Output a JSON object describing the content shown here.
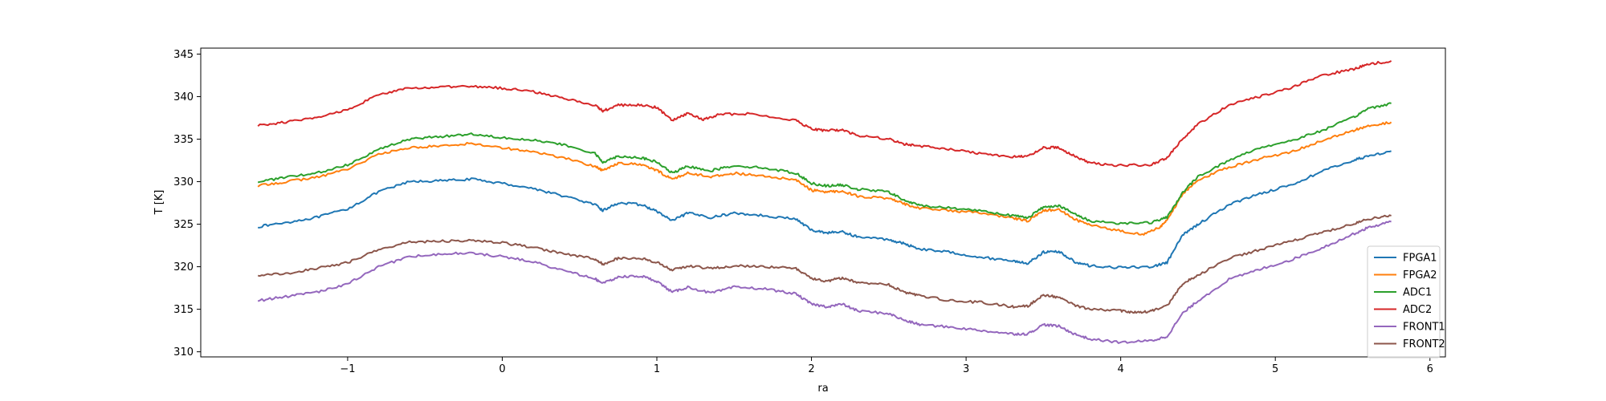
{
  "chart_data": {
    "type": "line",
    "title": "",
    "xlabel": "ra",
    "ylabel": "T [K]",
    "xlim": [
      -1.95,
      6.1
    ],
    "ylim": [
      309.4,
      345.7
    ],
    "xticks": [
      -1,
      0,
      1,
      2,
      3,
      4,
      5,
      6
    ],
    "yticks": [
      310,
      315,
      320,
      325,
      330,
      335,
      340,
      345
    ],
    "grid": false,
    "legend_position": "lower-right",
    "series": [
      {
        "name": "FPGA1",
        "color": "#1f77b4",
        "points": [
          [
            -1.58,
            324.7
          ],
          [
            -1.4,
            325.2
          ],
          [
            -1.2,
            325.8
          ],
          [
            -1.0,
            326.8
          ],
          [
            -0.8,
            328.8
          ],
          [
            -0.6,
            330.0
          ],
          [
            -0.4,
            330.1
          ],
          [
            -0.2,
            330.3
          ],
          [
            0.0,
            329.8
          ],
          [
            0.2,
            329.2
          ],
          [
            0.4,
            328.3
          ],
          [
            0.6,
            327.3
          ],
          [
            0.65,
            326.6
          ],
          [
            0.75,
            327.5
          ],
          [
            0.9,
            327.3
          ],
          [
            1.0,
            326.5
          ],
          [
            1.1,
            325.4
          ],
          [
            1.2,
            326.3
          ],
          [
            1.35,
            325.8
          ],
          [
            1.5,
            326.3
          ],
          [
            1.7,
            326.0
          ],
          [
            1.9,
            325.6
          ],
          [
            2.0,
            324.3
          ],
          [
            2.1,
            324.0
          ],
          [
            2.2,
            324.1
          ],
          [
            2.3,
            323.5
          ],
          [
            2.5,
            323.2
          ],
          [
            2.6,
            322.7
          ],
          [
            2.7,
            322.1
          ],
          [
            2.9,
            321.7
          ],
          [
            3.1,
            321.1
          ],
          [
            3.3,
            320.7
          ],
          [
            3.4,
            320.4
          ],
          [
            3.5,
            321.7
          ],
          [
            3.6,
            321.8
          ],
          [
            3.7,
            320.6
          ],
          [
            3.8,
            320.1
          ],
          [
            4.0,
            319.9
          ],
          [
            4.2,
            320.0
          ],
          [
            4.3,
            320.5
          ],
          [
            4.4,
            323.7
          ],
          [
            4.5,
            325.0
          ],
          [
            4.7,
            327.3
          ],
          [
            4.9,
            328.6
          ],
          [
            5.1,
            329.6
          ],
          [
            5.3,
            331.2
          ],
          [
            5.5,
            332.5
          ],
          [
            5.6,
            333.0
          ],
          [
            5.75,
            333.6
          ]
        ]
      },
      {
        "name": "FPGA2",
        "color": "#ff7f0e",
        "points": [
          [
            -1.58,
            329.5
          ],
          [
            -1.4,
            330.0
          ],
          [
            -1.2,
            330.5
          ],
          [
            -1.0,
            331.5
          ],
          [
            -0.8,
            333.2
          ],
          [
            -0.6,
            334.0
          ],
          [
            -0.4,
            334.2
          ],
          [
            -0.2,
            334.5
          ],
          [
            0.0,
            334.0
          ],
          [
            0.2,
            333.5
          ],
          [
            0.4,
            332.8
          ],
          [
            0.6,
            331.8
          ],
          [
            0.65,
            331.3
          ],
          [
            0.75,
            332.2
          ],
          [
            0.9,
            332.0
          ],
          [
            1.0,
            331.3
          ],
          [
            1.1,
            330.3
          ],
          [
            1.2,
            331.0
          ],
          [
            1.35,
            330.6
          ],
          [
            1.5,
            331.0
          ],
          [
            1.7,
            330.6
          ],
          [
            1.9,
            330.2
          ],
          [
            2.0,
            329.0
          ],
          [
            2.1,
            328.8
          ],
          [
            2.2,
            328.9
          ],
          [
            2.3,
            328.3
          ],
          [
            2.5,
            328.0
          ],
          [
            2.6,
            327.4
          ],
          [
            2.7,
            326.9
          ],
          [
            2.9,
            326.6
          ],
          [
            3.1,
            326.3
          ],
          [
            3.3,
            325.7
          ],
          [
            3.4,
            325.4
          ],
          [
            3.5,
            326.6
          ],
          [
            3.6,
            326.7
          ],
          [
            3.7,
            325.6
          ],
          [
            3.8,
            324.9
          ],
          [
            4.0,
            324.2
          ],
          [
            4.15,
            323.8
          ],
          [
            4.25,
            324.6
          ],
          [
            4.3,
            325.5
          ],
          [
            4.4,
            328.5
          ],
          [
            4.5,
            330.2
          ],
          [
            4.7,
            331.7
          ],
          [
            4.9,
            332.7
          ],
          [
            5.1,
            333.5
          ],
          [
            5.3,
            334.8
          ],
          [
            5.5,
            336.0
          ],
          [
            5.6,
            336.5
          ],
          [
            5.75,
            337.0
          ]
        ]
      },
      {
        "name": "ADC1",
        "color": "#2ca02c",
        "points": [
          [
            -1.58,
            330.0
          ],
          [
            -1.4,
            330.5
          ],
          [
            -1.2,
            331.0
          ],
          [
            -1.0,
            332.0
          ],
          [
            -0.8,
            333.8
          ],
          [
            -0.6,
            335.0
          ],
          [
            -0.4,
            335.3
          ],
          [
            -0.2,
            335.6
          ],
          [
            0.0,
            335.2
          ],
          [
            0.2,
            334.9
          ],
          [
            0.4,
            334.3
          ],
          [
            0.6,
            333.3
          ],
          [
            0.65,
            332.3
          ],
          [
            0.75,
            333.0
          ],
          [
            0.9,
            332.8
          ],
          [
            1.0,
            332.3
          ],
          [
            1.1,
            331.0
          ],
          [
            1.2,
            331.8
          ],
          [
            1.35,
            331.3
          ],
          [
            1.5,
            331.9
          ],
          [
            1.7,
            331.6
          ],
          [
            1.9,
            331.0
          ],
          [
            2.0,
            329.8
          ],
          [
            2.1,
            329.5
          ],
          [
            2.2,
            329.6
          ],
          [
            2.3,
            329.1
          ],
          [
            2.5,
            328.8
          ],
          [
            2.6,
            327.8
          ],
          [
            2.7,
            327.2
          ],
          [
            2.9,
            326.9
          ],
          [
            3.1,
            326.6
          ],
          [
            3.3,
            326.0
          ],
          [
            3.4,
            325.8
          ],
          [
            3.5,
            327.0
          ],
          [
            3.6,
            327.2
          ],
          [
            3.7,
            326.2
          ],
          [
            3.8,
            325.4
          ],
          [
            4.0,
            325.1
          ],
          [
            4.2,
            325.2
          ],
          [
            4.3,
            325.8
          ],
          [
            4.4,
            328.7
          ],
          [
            4.5,
            330.6
          ],
          [
            4.7,
            332.5
          ],
          [
            4.9,
            334.0
          ],
          [
            5.1,
            334.8
          ],
          [
            5.3,
            336.0
          ],
          [
            5.5,
            337.5
          ],
          [
            5.6,
            338.6
          ],
          [
            5.75,
            339.2
          ]
        ]
      },
      {
        "name": "ADC2",
        "color": "#d62728",
        "points": [
          [
            -1.58,
            336.6
          ],
          [
            -1.4,
            337.0
          ],
          [
            -1.2,
            337.5
          ],
          [
            -1.0,
            338.5
          ],
          [
            -0.8,
            340.2
          ],
          [
            -0.6,
            341.0
          ],
          [
            -0.4,
            341.1
          ],
          [
            -0.2,
            341.2
          ],
          [
            0.0,
            341.0
          ],
          [
            0.2,
            340.6
          ],
          [
            0.4,
            339.8
          ],
          [
            0.6,
            339.0
          ],
          [
            0.65,
            338.3
          ],
          [
            0.75,
            339.0
          ],
          [
            0.9,
            339.0
          ],
          [
            1.0,
            338.7
          ],
          [
            1.1,
            337.2
          ],
          [
            1.2,
            338.0
          ],
          [
            1.3,
            337.3
          ],
          [
            1.4,
            337.9
          ],
          [
            1.6,
            338.0
          ],
          [
            1.9,
            337.2
          ],
          [
            2.0,
            336.2
          ],
          [
            2.1,
            336.0
          ],
          [
            2.2,
            336.1
          ],
          [
            2.3,
            335.4
          ],
          [
            2.5,
            335.0
          ],
          [
            2.6,
            334.4
          ],
          [
            2.7,
            334.2
          ],
          [
            2.9,
            333.8
          ],
          [
            3.1,
            333.3
          ],
          [
            3.3,
            332.9
          ],
          [
            3.4,
            333.0
          ],
          [
            3.5,
            334.0
          ],
          [
            3.6,
            334.0
          ],
          [
            3.7,
            333.0
          ],
          [
            3.8,
            332.2
          ],
          [
            4.0,
            331.9
          ],
          [
            4.2,
            332.0
          ],
          [
            4.3,
            332.8
          ],
          [
            4.4,
            335.0
          ],
          [
            4.5,
            336.8
          ],
          [
            4.7,
            339.0
          ],
          [
            4.9,
            340.0
          ],
          [
            5.1,
            341.0
          ],
          [
            5.3,
            342.5
          ],
          [
            5.5,
            343.2
          ],
          [
            5.6,
            343.8
          ],
          [
            5.75,
            344.2
          ]
        ]
      },
      {
        "name": "FRONT1",
        "color": "#9467bd",
        "points": [
          [
            -1.58,
            316.0
          ],
          [
            -1.4,
            316.5
          ],
          [
            -1.2,
            317.0
          ],
          [
            -1.0,
            318.0
          ],
          [
            -0.8,
            320.0
          ],
          [
            -0.6,
            321.2
          ],
          [
            -0.4,
            321.5
          ],
          [
            -0.2,
            321.6
          ],
          [
            0.0,
            321.2
          ],
          [
            0.2,
            320.6
          ],
          [
            0.4,
            319.5
          ],
          [
            0.6,
            318.6
          ],
          [
            0.65,
            318.0
          ],
          [
            0.75,
            318.8
          ],
          [
            0.9,
            318.9
          ],
          [
            1.0,
            318.3
          ],
          [
            1.1,
            317.0
          ],
          [
            1.2,
            317.6
          ],
          [
            1.35,
            316.9
          ],
          [
            1.5,
            317.6
          ],
          [
            1.7,
            317.4
          ],
          [
            1.9,
            316.8
          ],
          [
            2.0,
            315.6
          ],
          [
            2.1,
            315.3
          ],
          [
            2.2,
            315.6
          ],
          [
            2.3,
            314.8
          ],
          [
            2.5,
            314.5
          ],
          [
            2.6,
            313.7
          ],
          [
            2.7,
            313.2
          ],
          [
            2.9,
            312.9
          ],
          [
            3.1,
            312.5
          ],
          [
            3.3,
            312.1
          ],
          [
            3.4,
            312.1
          ],
          [
            3.5,
            313.2
          ],
          [
            3.6,
            313.0
          ],
          [
            3.7,
            312.1
          ],
          [
            3.8,
            311.5
          ],
          [
            4.0,
            311.1
          ],
          [
            4.2,
            311.3
          ],
          [
            4.3,
            311.8
          ],
          [
            4.4,
            314.5
          ],
          [
            4.5,
            316.0
          ],
          [
            4.7,
            318.5
          ],
          [
            4.9,
            319.7
          ],
          [
            5.1,
            320.8
          ],
          [
            5.3,
            322.2
          ],
          [
            5.5,
            323.8
          ],
          [
            5.6,
            324.6
          ],
          [
            5.75,
            325.3
          ]
        ]
      },
      {
        "name": "FRONT2",
        "color": "#8c564b",
        "points": [
          [
            -1.58,
            319.0
          ],
          [
            -1.4,
            319.2
          ],
          [
            -1.2,
            319.8
          ],
          [
            -1.0,
            320.5
          ],
          [
            -0.8,
            322.0
          ],
          [
            -0.6,
            322.9
          ],
          [
            -0.4,
            323.0
          ],
          [
            -0.2,
            323.1
          ],
          [
            0.0,
            322.8
          ],
          [
            0.2,
            322.3
          ],
          [
            0.4,
            321.5
          ],
          [
            0.6,
            320.9
          ],
          [
            0.65,
            320.3
          ],
          [
            0.75,
            321.0
          ],
          [
            0.9,
            321.0
          ],
          [
            1.0,
            320.5
          ],
          [
            1.1,
            319.6
          ],
          [
            1.2,
            320.1
          ],
          [
            1.35,
            319.8
          ],
          [
            1.5,
            320.1
          ],
          [
            1.7,
            320.0
          ],
          [
            1.9,
            319.8
          ],
          [
            2.0,
            318.6
          ],
          [
            2.1,
            318.3
          ],
          [
            2.2,
            318.7
          ],
          [
            2.3,
            318.1
          ],
          [
            2.5,
            317.9
          ],
          [
            2.6,
            317.0
          ],
          [
            2.7,
            316.6
          ],
          [
            2.9,
            316.0
          ],
          [
            3.1,
            315.8
          ],
          [
            3.3,
            315.3
          ],
          [
            3.4,
            315.4
          ],
          [
            3.5,
            316.7
          ],
          [
            3.6,
            316.4
          ],
          [
            3.7,
            315.5
          ],
          [
            3.8,
            315.0
          ],
          [
            4.0,
            314.8
          ],
          [
            4.1,
            314.6
          ],
          [
            4.2,
            314.8
          ],
          [
            4.3,
            315.4
          ],
          [
            4.4,
            318.0
          ],
          [
            4.5,
            319.0
          ],
          [
            4.7,
            321.0
          ],
          [
            4.9,
            322.0
          ],
          [
            5.1,
            323.0
          ],
          [
            5.3,
            324.0
          ],
          [
            5.5,
            325.0
          ],
          [
            5.6,
            325.6
          ],
          [
            5.75,
            326.0
          ]
        ]
      }
    ]
  }
}
